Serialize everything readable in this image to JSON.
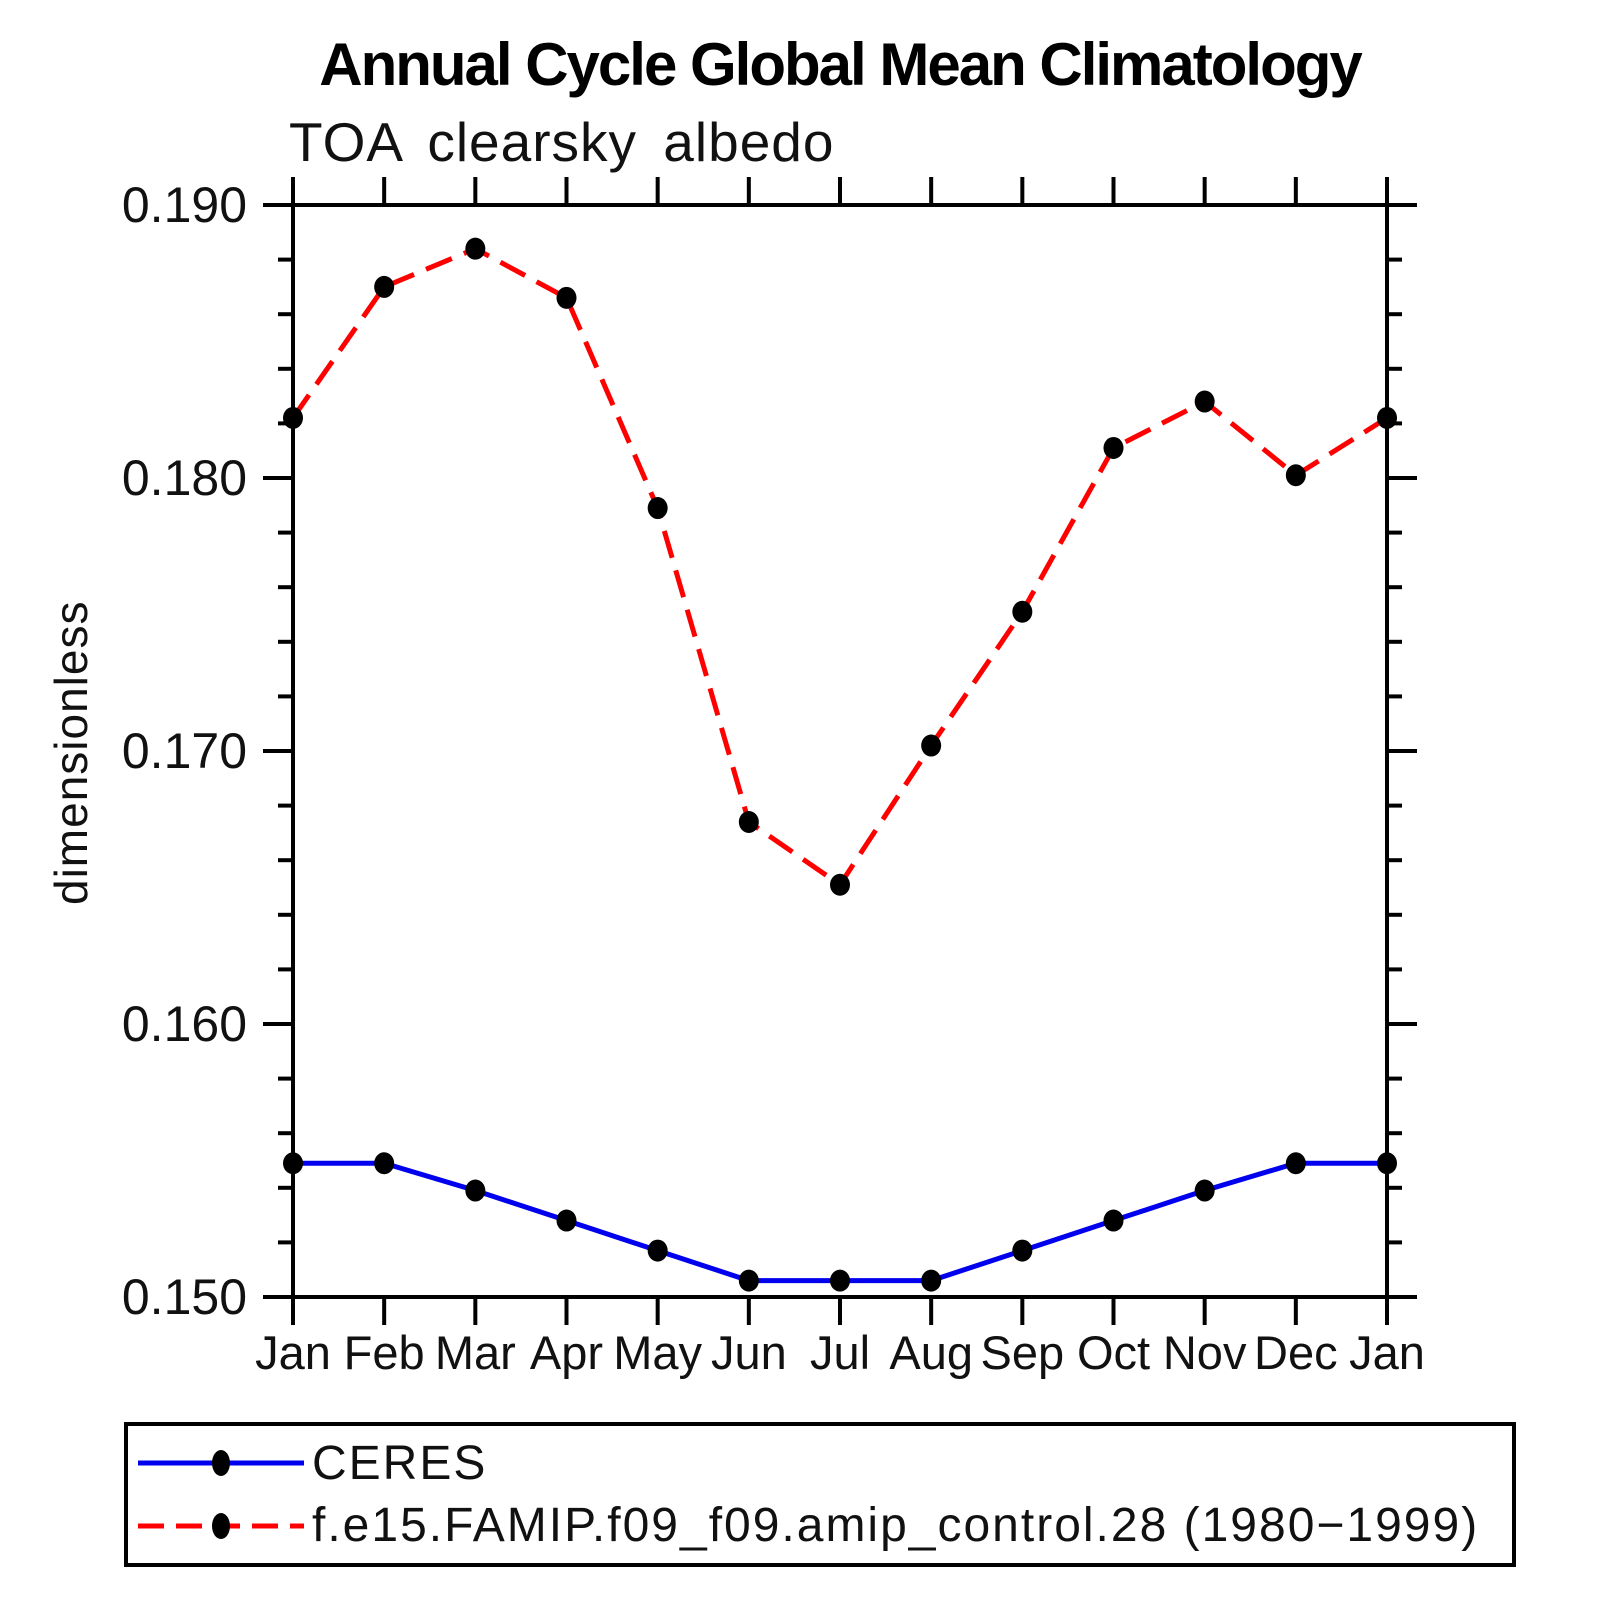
{
  "chart_data": {
    "type": "line",
    "title": "Annual Cycle Global Mean Climatology",
    "subtitle": "TOA clearsky albedo",
    "ylabel": "dimensionless",
    "xlabel": "",
    "categories": [
      "Jan",
      "Feb",
      "Mar",
      "Apr",
      "May",
      "Jun",
      "Jul",
      "Aug",
      "Sep",
      "Oct",
      "Nov",
      "Dec",
      "Jan"
    ],
    "ylim": [
      0.15,
      0.19
    ],
    "ytick_step": 0.01,
    "y_minor_step": 0.002,
    "ytick_labels": [
      "0.150",
      "0.160",
      "0.170",
      "0.180",
      "0.190"
    ],
    "grid": false,
    "legend_position": "bottom-box",
    "marker": "filled-circle",
    "marker_color": "#000000",
    "series": [
      {
        "name": "CERES",
        "color": "#0000EE",
        "style": "solid",
        "values": [
          0.1549,
          0.1549,
          0.1539,
          0.1528,
          0.1517,
          0.1506,
          0.1506,
          0.1506,
          0.1517,
          0.1528,
          0.1539,
          0.1549,
          0.1549
        ]
      },
      {
        "name": "f.e15.FAMIP.f09_f09.amip_control.28 (1980−1999)",
        "color": "#FF0000",
        "style": "dashed",
        "values": [
          0.1822,
          0.187,
          0.1884,
          0.1866,
          0.1789,
          0.1674,
          0.1651,
          0.1702,
          0.1751,
          0.1811,
          0.1828,
          0.1801,
          0.1822
        ]
      }
    ]
  }
}
